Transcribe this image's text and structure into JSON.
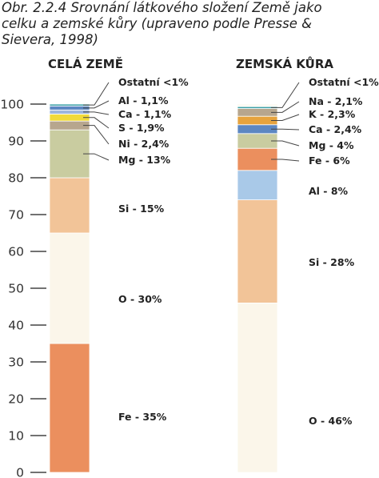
{
  "caption": {
    "lines": [
      "Obr. 2.2.4  Srovnání látkového složení Země jako",
      "celku a zemské kůry (upraveno podle Presse &",
      "Sievera, 1998)"
    ]
  },
  "chart_data": [
    {
      "type": "bar",
      "stacked": true,
      "title": "CELÁ ZEMĚ",
      "ylim": [
        0,
        100
      ],
      "yticks": [
        0,
        10,
        20,
        30,
        40,
        50,
        60,
        70,
        80,
        90,
        100
      ],
      "segments": [
        {
          "label": "Fe - 35%",
          "value": 35,
          "color": "#eb8f5e"
        },
        {
          "label": "O - 30%",
          "value": 30,
          "color": "#fbf6ea"
        },
        {
          "label": "Si - 15%",
          "value": 15,
          "color": "#f2c498"
        },
        {
          "label": "Mg - 13%",
          "value": 13,
          "color": "#c9cca0"
        },
        {
          "label": "Ni - 2,4%",
          "value": 2.4,
          "color": "#b7a68e"
        },
        {
          "label": "S - 1,9%",
          "value": 1.9,
          "color": "#f1da3a"
        },
        {
          "label": "Ca - 1,1%",
          "value": 1.1,
          "color": "#9db6dd"
        },
        {
          "label": "Al - 1,1%",
          "value": 1.1,
          "color": "#5c87c2"
        },
        {
          "label": "Ostatní  <1%",
          "value": 0.5,
          "color": "#3aa0a6"
        }
      ]
    },
    {
      "type": "bar",
      "stacked": true,
      "title": "ZEMSKÁ KŮRA",
      "ylim": [
        0,
        100
      ],
      "segments": [
        {
          "label": "O - 46%",
          "value": 46,
          "color": "#fbf6ea"
        },
        {
          "label": "Si - 28%",
          "value": 28,
          "color": "#f2c498"
        },
        {
          "label": "Al - 8%",
          "value": 8,
          "color": "#a9c9e8"
        },
        {
          "label": "Fe - 6%",
          "value": 6,
          "color": "#eb8f5e"
        },
        {
          "label": "Mg - 4%",
          "value": 4,
          "color": "#c9cca0"
        },
        {
          "label": "Ca - 2,4%",
          "value": 2.4,
          "color": "#5c87c2"
        },
        {
          "label": "K - 2,3%",
          "value": 2.3,
          "color": "#e6a33e"
        },
        {
          "label": "Na - 2,1%",
          "value": 2.1,
          "color": "#b7a68e"
        },
        {
          "label": "Ostatní  <1%",
          "value": 0.5,
          "color": "#3aa0a6"
        }
      ]
    }
  ]
}
